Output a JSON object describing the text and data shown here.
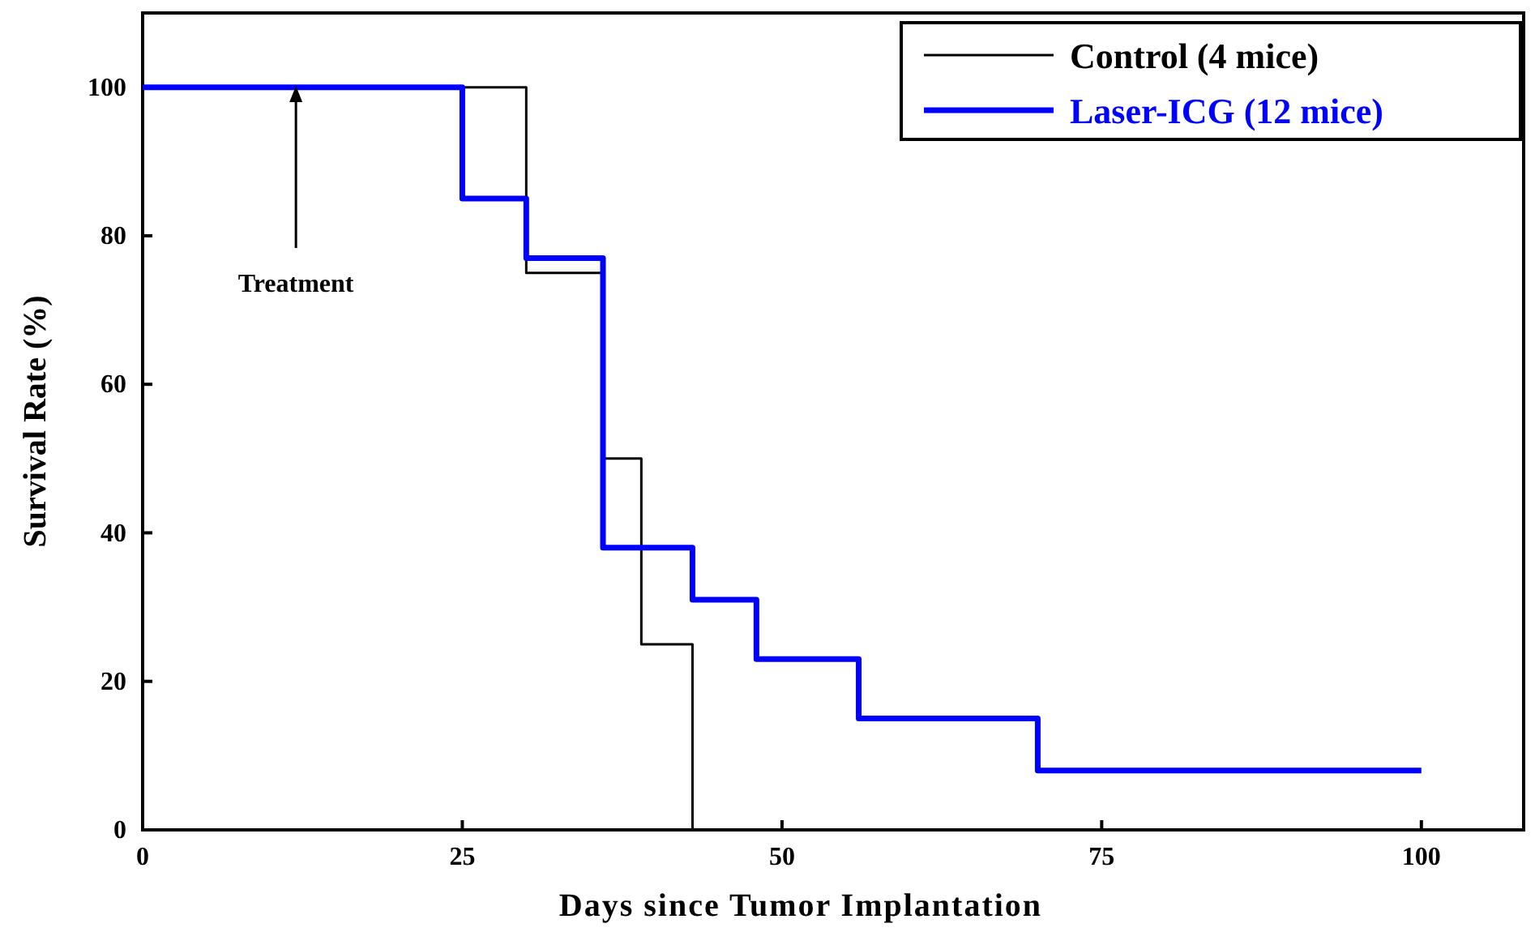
{
  "chart_data": {
    "type": "step",
    "xlabel": "Days since Tumor Implantation",
    "ylabel": "Survival Rate (%)",
    "xlim": [
      0,
      108
    ],
    "ylim": [
      0,
      110
    ],
    "xticks": [
      0,
      25,
      50,
      75,
      100
    ],
    "yticks": [
      0,
      20,
      40,
      60,
      80,
      100
    ],
    "series": [
      {
        "name": "Control (4 mice)",
        "color": "#000000",
        "x": [
          0,
          30,
          36,
          39,
          43
        ],
        "values": [
          100,
          75,
          50,
          25,
          0
        ]
      },
      {
        "name": "Laser-ICG (12 mice)",
        "color": "#0000ff",
        "x": [
          0,
          25,
          30,
          36,
          43,
          48,
          56,
          70,
          100
        ],
        "values": [
          100,
          85,
          77,
          38,
          31,
          23,
          15,
          8,
          8
        ]
      }
    ],
    "annotations": [
      "Treatment"
    ],
    "legend": "top right",
    "grid": false
  }
}
